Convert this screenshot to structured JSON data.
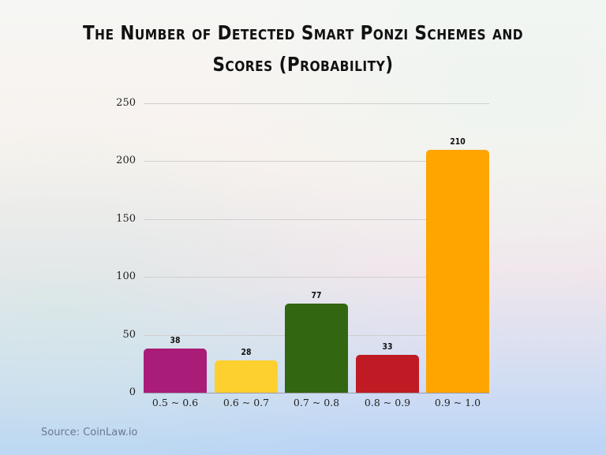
{
  "title": "The Number of Detected Smart Ponzi Schemes and Scores (Probability)",
  "title_line1": "The Number of Detected Smart Ponzi Schemes and",
  "title_line2": "Scores (Probability)",
  "source": "Source: CoinLaw.io",
  "y_ticks": [
    "0",
    "50",
    "100",
    "150",
    "200",
    "250"
  ],
  "bars": [
    {
      "category": "0.5 ~ 0.6",
      "value": 38,
      "label": "38",
      "color": "#a91c78"
    },
    {
      "category": "0.6 ~ 0.7",
      "value": 28,
      "label": "28",
      "color": "#fdd02f"
    },
    {
      "category": "0.7 ~ 0.8",
      "value": 77,
      "label": "77",
      "color": "#336611"
    },
    {
      "category": "0.8 ~ 0.9",
      "value": 33,
      "label": "33",
      "color": "#c01a24"
    },
    {
      "category": "0.9 ~ 1.0",
      "value": 210,
      "label": "210",
      "color": "#fea500"
    }
  ],
  "chart_data": {
    "type": "bar",
    "title": "The Number of Detected Smart Ponzi Schemes and Scores (Probability)",
    "categories": [
      "0.5 ~ 0.6",
      "0.6 ~ 0.7",
      "0.7 ~ 0.8",
      "0.8 ~ 0.9",
      "0.9 ~ 1.0"
    ],
    "values": [
      38,
      28,
      77,
      33,
      210
    ],
    "colors": [
      "#a91c78",
      "#fdd02f",
      "#336611",
      "#c01a24",
      "#fea500"
    ],
    "xlabel": "",
    "ylabel": "",
    "ylim": [
      0,
      250
    ],
    "yticks": [
      0,
      50,
      100,
      150,
      200,
      250
    ],
    "grid": true,
    "data_labels": true,
    "legend": null,
    "source": "Source: CoinLaw.io"
  }
}
